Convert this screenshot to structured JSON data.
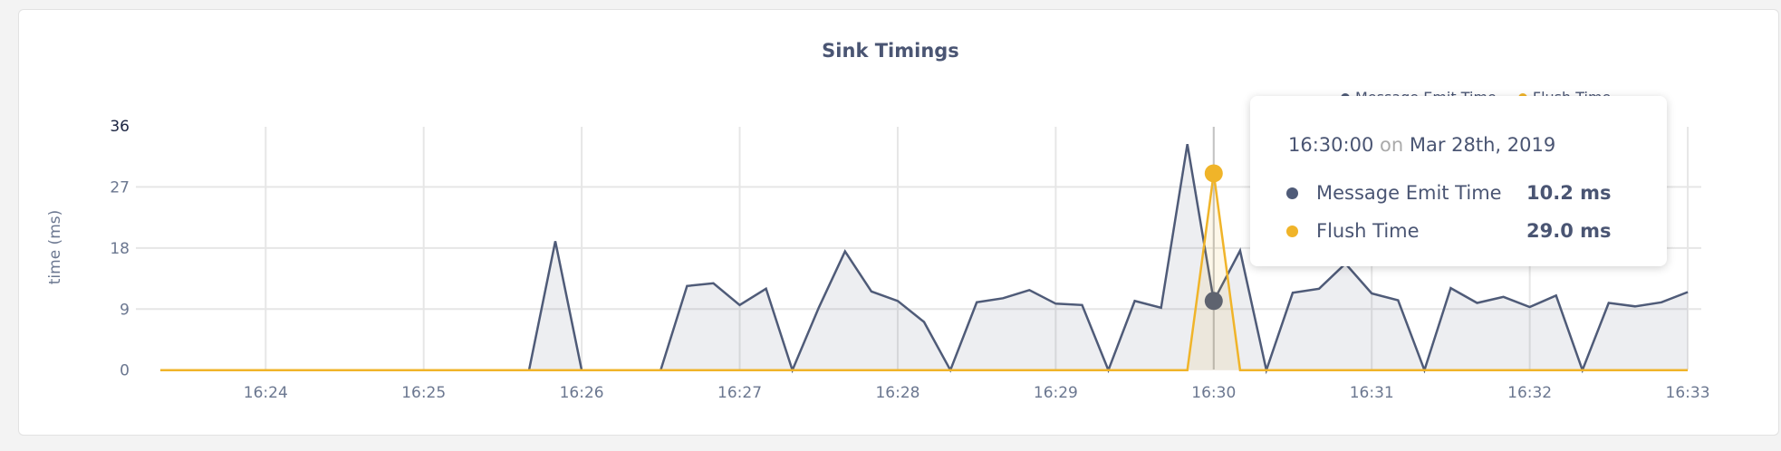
{
  "chart_data": {
    "type": "area",
    "title": "Sink Timings",
    "xlabel": "",
    "ylabel": "time (ms)",
    "ylim": [
      0,
      36
    ],
    "yticks": [
      "0",
      "9",
      "18",
      "27",
      "36"
    ],
    "xticks": [
      "16:24",
      "16:25",
      "16:26",
      "16:27",
      "16:28",
      "16:29",
      "16:30",
      "16:31",
      "16:32",
      "16:33"
    ],
    "x_start": "16:23:20",
    "x_step_seconds": 10,
    "grid": true,
    "legend": "top-right",
    "series": [
      {
        "name": "Message Emit Time",
        "color": "#4f5b78",
        "values": [
          0,
          0,
          0,
          0,
          0,
          0,
          0,
          0,
          0,
          0,
          0,
          0,
          0,
          0,
          0,
          19.0,
          0,
          0,
          0,
          0,
          12.4,
          12.8,
          9.6,
          12.0,
          0,
          9.2,
          17.5,
          11.6,
          10.2,
          7.1,
          0,
          10.0,
          10.6,
          11.8,
          9.8,
          9.6,
          0,
          10.2,
          9.2,
          33.3,
          10.2,
          17.6,
          0,
          11.4,
          12.0,
          15.7,
          11.3,
          10.3,
          0,
          12.1,
          9.9,
          10.8,
          9.3,
          11.0,
          0,
          9.9,
          9.4,
          10.0,
          11.5
        ]
      },
      {
        "name": "Flush Time",
        "color": "#f0b429",
        "values": [
          0,
          0,
          0,
          0,
          0,
          0,
          0,
          0,
          0,
          0,
          0,
          0,
          0,
          0,
          0,
          0,
          0,
          0,
          0,
          0,
          0,
          0,
          0,
          0,
          0,
          0,
          0,
          0,
          0,
          0,
          0,
          0,
          0,
          0,
          0,
          0,
          0,
          0,
          0,
          0,
          29.0,
          0,
          0,
          0,
          0,
          0,
          0,
          0,
          0,
          0,
          0,
          0,
          0,
          0,
          0,
          0,
          0,
          0,
          0
        ]
      }
    ],
    "hover_index": 40
  },
  "tooltip": {
    "time": "16:30:00",
    "on": "on",
    "date": "Mar 28th, 2019",
    "rows": [
      {
        "label": "Message Emit Time",
        "value": "10.2 ms"
      },
      {
        "label": "Flush Time",
        "value": "29.0 ms"
      }
    ]
  }
}
